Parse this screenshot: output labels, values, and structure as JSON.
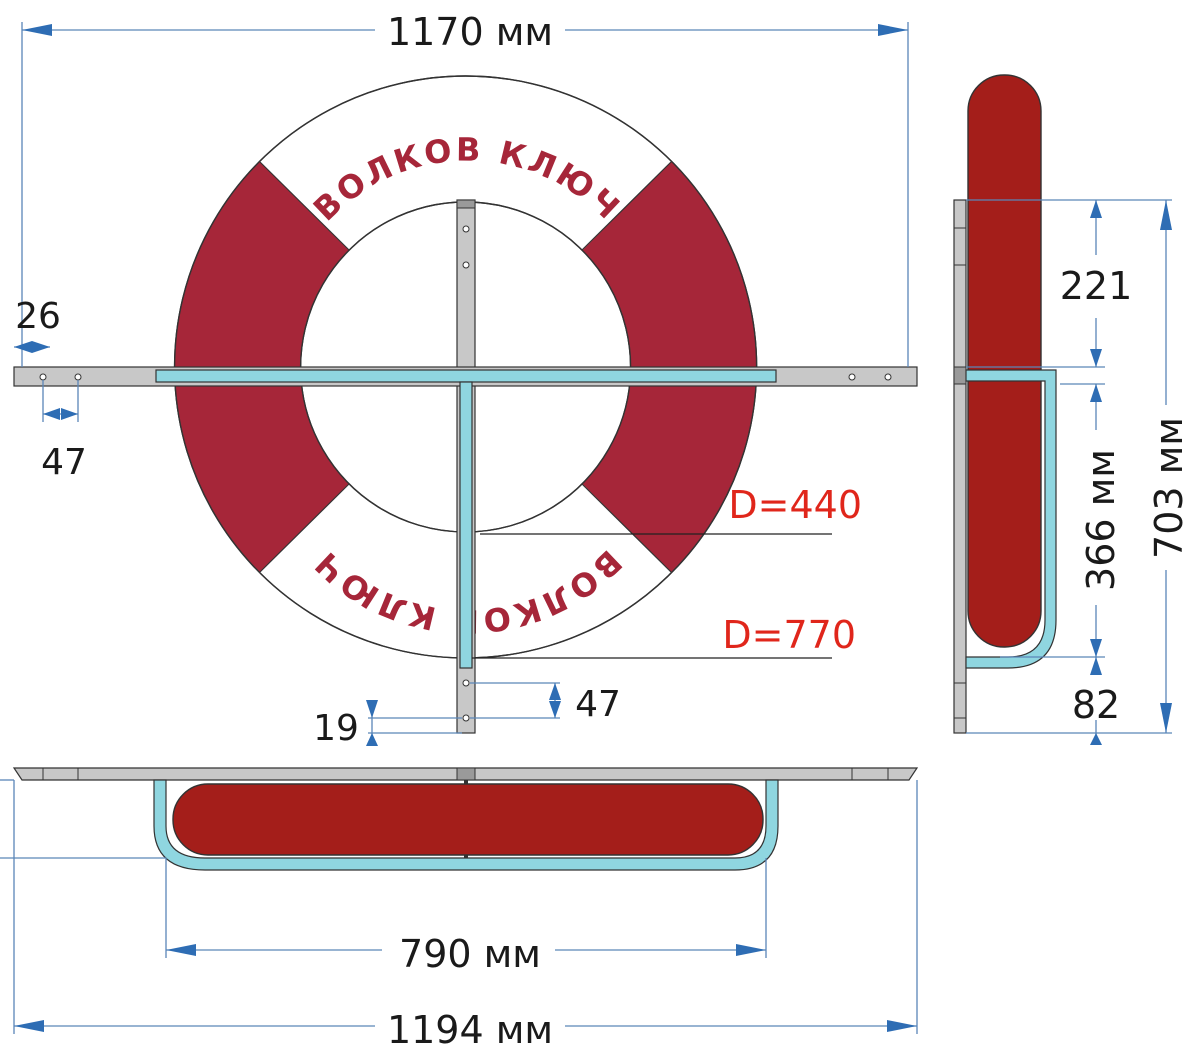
{
  "colors": {
    "ring_red": "#a62639",
    "ring_white": "#ffffff",
    "cushion_red": "#a41e1a",
    "steel": "#c8c8c8",
    "tube": "#8fd6e0",
    "dimension_blue": "#2e6db4",
    "callout_red": "#e0261b"
  },
  "ring": {
    "label_top": "ВОЛКОВ КЛЮЧ",
    "label_bottom": "ВОЛКОВ КЛЮЧ"
  },
  "dimensions": {
    "top_width": "1170 мм",
    "bracket_offset": "26",
    "hole_spacing_horizontal": "47",
    "inner_diameter": "D=440",
    "outer_diameter": "D=770",
    "hole_spacing_vertical": "47",
    "end_offset": "19",
    "side_upper": "221",
    "side_middle": "366 мм",
    "side_total": "703 мм",
    "side_bottom": "82",
    "bottom_inner_width": "790 мм",
    "bottom_total_width": "1194 мм"
  },
  "icons": {
    "arrowheads": "dimension-arrow-icon",
    "mounting_holes": "bolt-hole-icon"
  }
}
